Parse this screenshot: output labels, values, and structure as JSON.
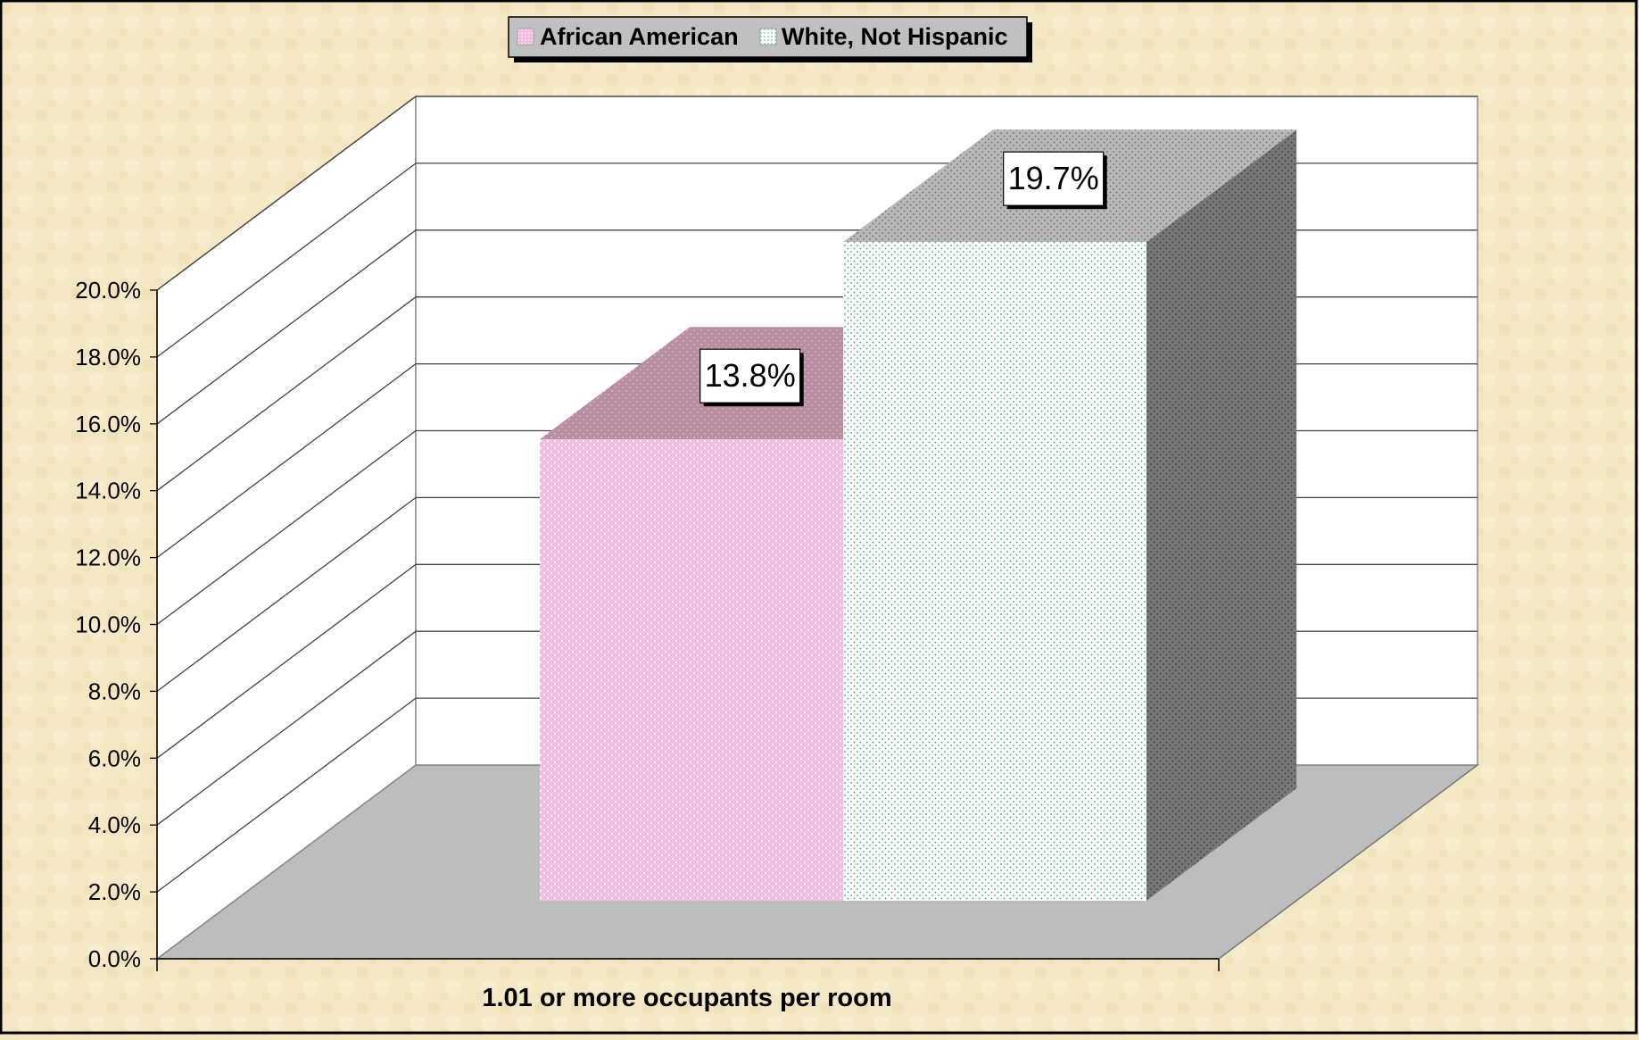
{
  "chart_data": {
    "type": "bar",
    "title": "",
    "xlabel": "",
    "ylabel": "",
    "categories": [
      "1.01 or more occupants per room"
    ],
    "series": [
      {
        "name": "African American",
        "values": [
          13.8
        ],
        "data_label": "13.8%",
        "color": "#f7c6e3",
        "side_color": "#b98fa5",
        "top_color": "#c7a4b5"
      },
      {
        "name": "White, Not Hispanic",
        "values": [
          19.7
        ],
        "data_label": "19.7%",
        "color": "#ffffff",
        "side_color": "#7a7a7a",
        "top_color": "#b9b9b9"
      }
    ],
    "ylim": [
      0,
      20
    ],
    "yticks": [
      "0.0%",
      "2.0%",
      "4.0%",
      "6.0%",
      "8.0%",
      "10.0%",
      "12.0%",
      "14.0%",
      "16.0%",
      "18.0%",
      "20.0%"
    ],
    "grid": true,
    "legend_position": "top-center",
    "style": "3d-clustered-column",
    "colors": {
      "background": "#f3e6c2",
      "floor": "#bdbdbd",
      "wall": "#ffffff",
      "gridline": "#555555",
      "legend_box": "#c0c0c0"
    }
  }
}
